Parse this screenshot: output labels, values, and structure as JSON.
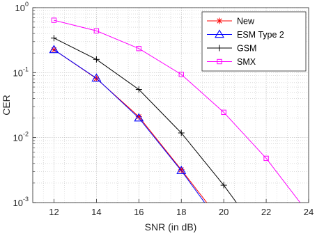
{
  "chart_data": {
    "type": "line",
    "title": "",
    "xlabel": "SNR (in dB)",
    "ylabel": "CER",
    "xlim": [
      11,
      24
    ],
    "ylim": [
      0.001,
      1
    ],
    "yscale": "log",
    "grid": true,
    "minor_grid": true,
    "legend_position": "top-right",
    "x_ticks": [
      12,
      14,
      16,
      18,
      20,
      22,
      24
    ],
    "x_tick_labels": [
      "12",
      "14",
      "16",
      "18",
      "20",
      "22",
      "24"
    ],
    "y_ticks": [
      {
        "value": 0.001,
        "base": "10",
        "exp": "-3"
      },
      {
        "value": 0.01,
        "base": "10",
        "exp": "-2"
      },
      {
        "value": 0.1,
        "base": "10",
        "exp": "-1"
      },
      {
        "value": 1,
        "base": "10",
        "exp": "0"
      }
    ],
    "series": [
      {
        "name": "New",
        "color": "#ff0000",
        "marker": "asterisk",
        "x": [
          12,
          14,
          16,
          18,
          19.2
        ],
        "y": [
          0.225,
          0.081,
          0.021,
          0.0032,
          0.001
        ]
      },
      {
        "name": "ESM Type 2",
        "color": "#0000ff",
        "marker": "triangle",
        "x": [
          12,
          14,
          16,
          18,
          19.1
        ],
        "y": [
          0.225,
          0.082,
          0.02,
          0.0031,
          0.001
        ]
      },
      {
        "name": "GSM",
        "color": "#000000",
        "marker": "plus",
        "x": [
          12,
          14,
          16,
          18,
          20,
          20.6
        ],
        "y": [
          0.34,
          0.16,
          0.055,
          0.0118,
          0.00185,
          0.001
        ]
      },
      {
        "name": "SMX",
        "color": "#ff00ff",
        "marker": "square",
        "x": [
          12,
          14,
          16,
          18,
          20,
          22,
          23.6
        ],
        "y": [
          0.64,
          0.44,
          0.235,
          0.094,
          0.0245,
          0.0048,
          0.001
        ]
      }
    ]
  }
}
